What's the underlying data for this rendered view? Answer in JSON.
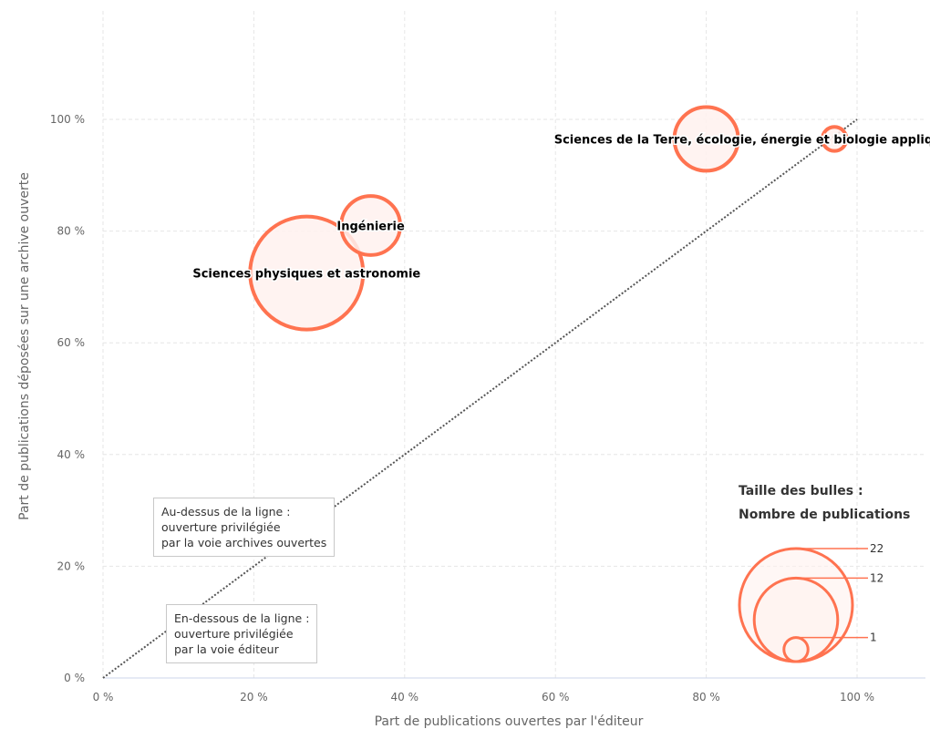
{
  "chart_data": {
    "type": "bubble",
    "xlabel": "Part de publications ouvertes par l'éditeur",
    "ylabel": "Part de publications déposées sur une archive ouverte",
    "xlim": [
      0,
      108
    ],
    "ylim": [
      0,
      110
    ],
    "x_ticks": [
      "0 %",
      "20 %",
      "40 %",
      "60 %",
      "80 %",
      "100 %"
    ],
    "y_ticks": [
      "0 %",
      "20 %",
      "40 %",
      "60 %",
      "80 %",
      "100 %"
    ],
    "x_tick_values": [
      0,
      20,
      40,
      60,
      80,
      100
    ],
    "y_tick_values": [
      0,
      20,
      40,
      60,
      80,
      100
    ],
    "grid": true,
    "reference_line": {
      "from": [
        0,
        0
      ],
      "to": [
        100,
        100
      ],
      "style": "dotted"
    },
    "points": [
      {
        "label": "Sciences physiques et astronomie",
        "x": 27,
        "y": 72.5,
        "size": 22
      },
      {
        "label": "Ingénierie",
        "x": 35.5,
        "y": 81,
        "size": 6
      },
      {
        "label": "Sciences de la Terre, écologie",
        "x": 80,
        "y": 96.5,
        "size": 7
      },
      {
        "label": "énergie et biologie appliquée",
        "x": 97,
        "y": 96.5,
        "size": 1
      }
    ],
    "size_legend": {
      "title_line1": "Taille des bulles :",
      "title_line2": "Nombre de publications",
      "values": [
        22,
        12,
        1
      ],
      "labels": [
        "22",
        "12",
        "1"
      ]
    },
    "annotations": {
      "above": [
        "Au-dessus de la ligne :",
        "ouverture privilégiée",
        "par la voie archives ouvertes"
      ],
      "below": [
        "En-dessous de la ligne :",
        "ouverture privilégiée",
        "par la voie éditeur"
      ]
    },
    "colors": {
      "bubble_stroke": "#ff7350",
      "bubble_fill": "#fff1ee",
      "grid": "#e6e6e6",
      "reference_line": "#555555"
    }
  }
}
